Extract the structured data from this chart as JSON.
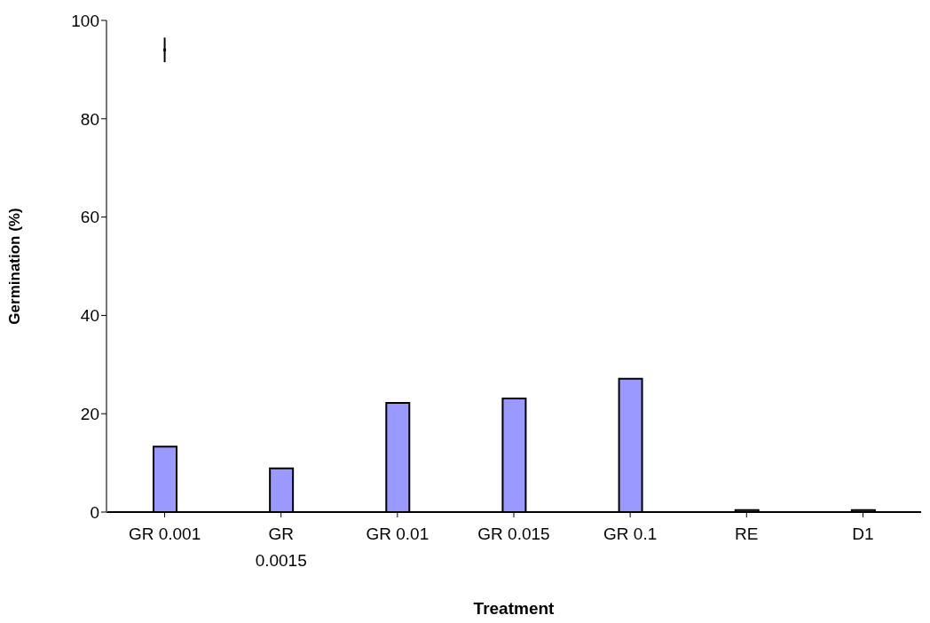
{
  "chart_data": {
    "type": "bar",
    "xlabel": "Treatment",
    "ylabel": "Germination (%)",
    "categories": [
      "GR 0.001",
      "GR 0.0015",
      "GR 0.01",
      "GR 0.015",
      "GR 0.1",
      "RE",
      "D1"
    ],
    "series": [
      {
        "color": "#9999ff",
        "values": [
          13.3,
          8.9,
          22.2,
          23.1,
          27.1,
          0.4,
          0.4
        ]
      },
      {
        "type": "scatter",
        "color": "#000000",
        "x": [
          "GR 0.001"
        ],
        "values": [
          94
        ],
        "errors": [
          2.5
        ]
      }
    ],
    "marker": "square",
    "ylim": [
      0,
      100
    ],
    "yticks": [
      0,
      20,
      40,
      60,
      80,
      100
    ],
    "grid": false,
    "legend": false
  }
}
